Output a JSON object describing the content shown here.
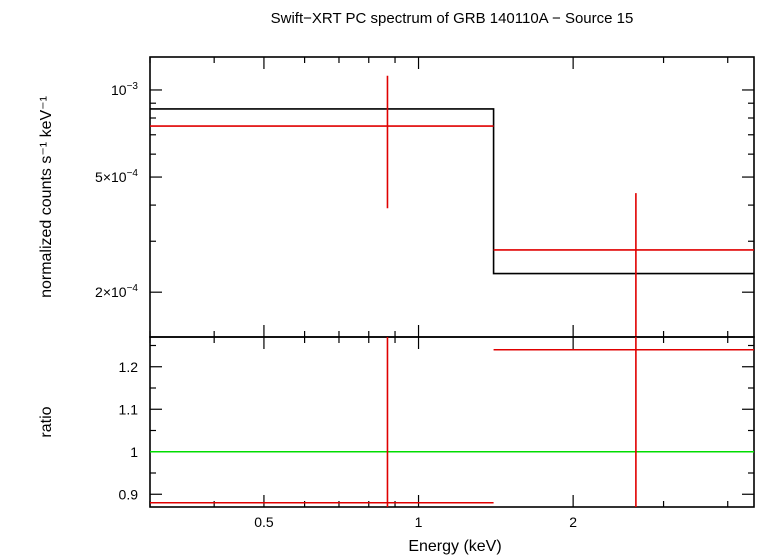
{
  "title": "Swift−XRT PC spectrum of GRB 140110A − Source 15",
  "chart_data": [
    {
      "panel": "spectrum",
      "type": "line",
      "xlabel": "Energy (keV)",
      "ylabel": "normalized counts s⁻¹ keV⁻¹",
      "xscale": "log",
      "yscale": "log",
      "xlim": [
        0.3,
        4.5
      ],
      "ylim": [
        0.00014,
        0.0013
      ],
      "ytick_labels": [
        {
          "value": 0.001,
          "base": "10",
          "exp": "−3"
        },
        {
          "value": 0.0005,
          "base": "5×10",
          "exp": "−4"
        },
        {
          "value": 0.0002,
          "base": "2×10",
          "exp": "−4"
        }
      ],
      "series": [
        {
          "role": "model",
          "color": "#000000",
          "steps": [
            {
              "x0": 0.3,
              "x1": 1.4,
              "y": 0.00086
            },
            {
              "x0": 1.4,
              "x1": 4.5,
              "y": 0.000232
            }
          ]
        },
        {
          "role": "data",
          "color": "#e00000",
          "points": [
            {
              "x": 0.87,
              "xlo": 0.3,
              "xhi": 1.4,
              "y": 0.00075,
              "ylo": 0.00039,
              "yhi": 0.00112
            },
            {
              "x": 2.65,
              "xlo": 1.4,
              "xhi": 4.5,
              "y": 0.00028,
              "ylo": 0.00014,
              "yhi": 0.00044
            }
          ]
        }
      ]
    },
    {
      "panel": "ratio",
      "type": "line",
      "xlabel": "Energy (keV)",
      "ylabel": "ratio",
      "xscale": "log",
      "xlim": [
        0.3,
        4.5
      ],
      "ylim": [
        0.87,
        1.27
      ],
      "xtick_labels": [
        {
          "value": 0.5,
          "label": "0.5"
        },
        {
          "value": 1,
          "label": "1"
        },
        {
          "value": 2,
          "label": "2"
        }
      ],
      "ytick_labels": [
        {
          "value": 0.9,
          "label": "0.9"
        },
        {
          "value": 1.0,
          "label": "1"
        },
        {
          "value": 1.1,
          "label": "1.1"
        },
        {
          "value": 1.2,
          "label": "1.2"
        }
      ],
      "reference_line": {
        "y": 1.0,
        "color": "#00dd00"
      },
      "series": [
        {
          "role": "data",
          "color": "#e00000",
          "points": [
            {
              "x": 0.87,
              "xlo": 0.3,
              "xhi": 1.4,
              "y": 0.88,
              "ylo": 0.86,
              "yhi": 1.27
            },
            {
              "x": 2.65,
              "xlo": 1.4,
              "xhi": 4.5,
              "y": 1.24,
              "ylo": 0.86,
              "yhi": 1.27
            }
          ]
        }
      ]
    }
  ]
}
